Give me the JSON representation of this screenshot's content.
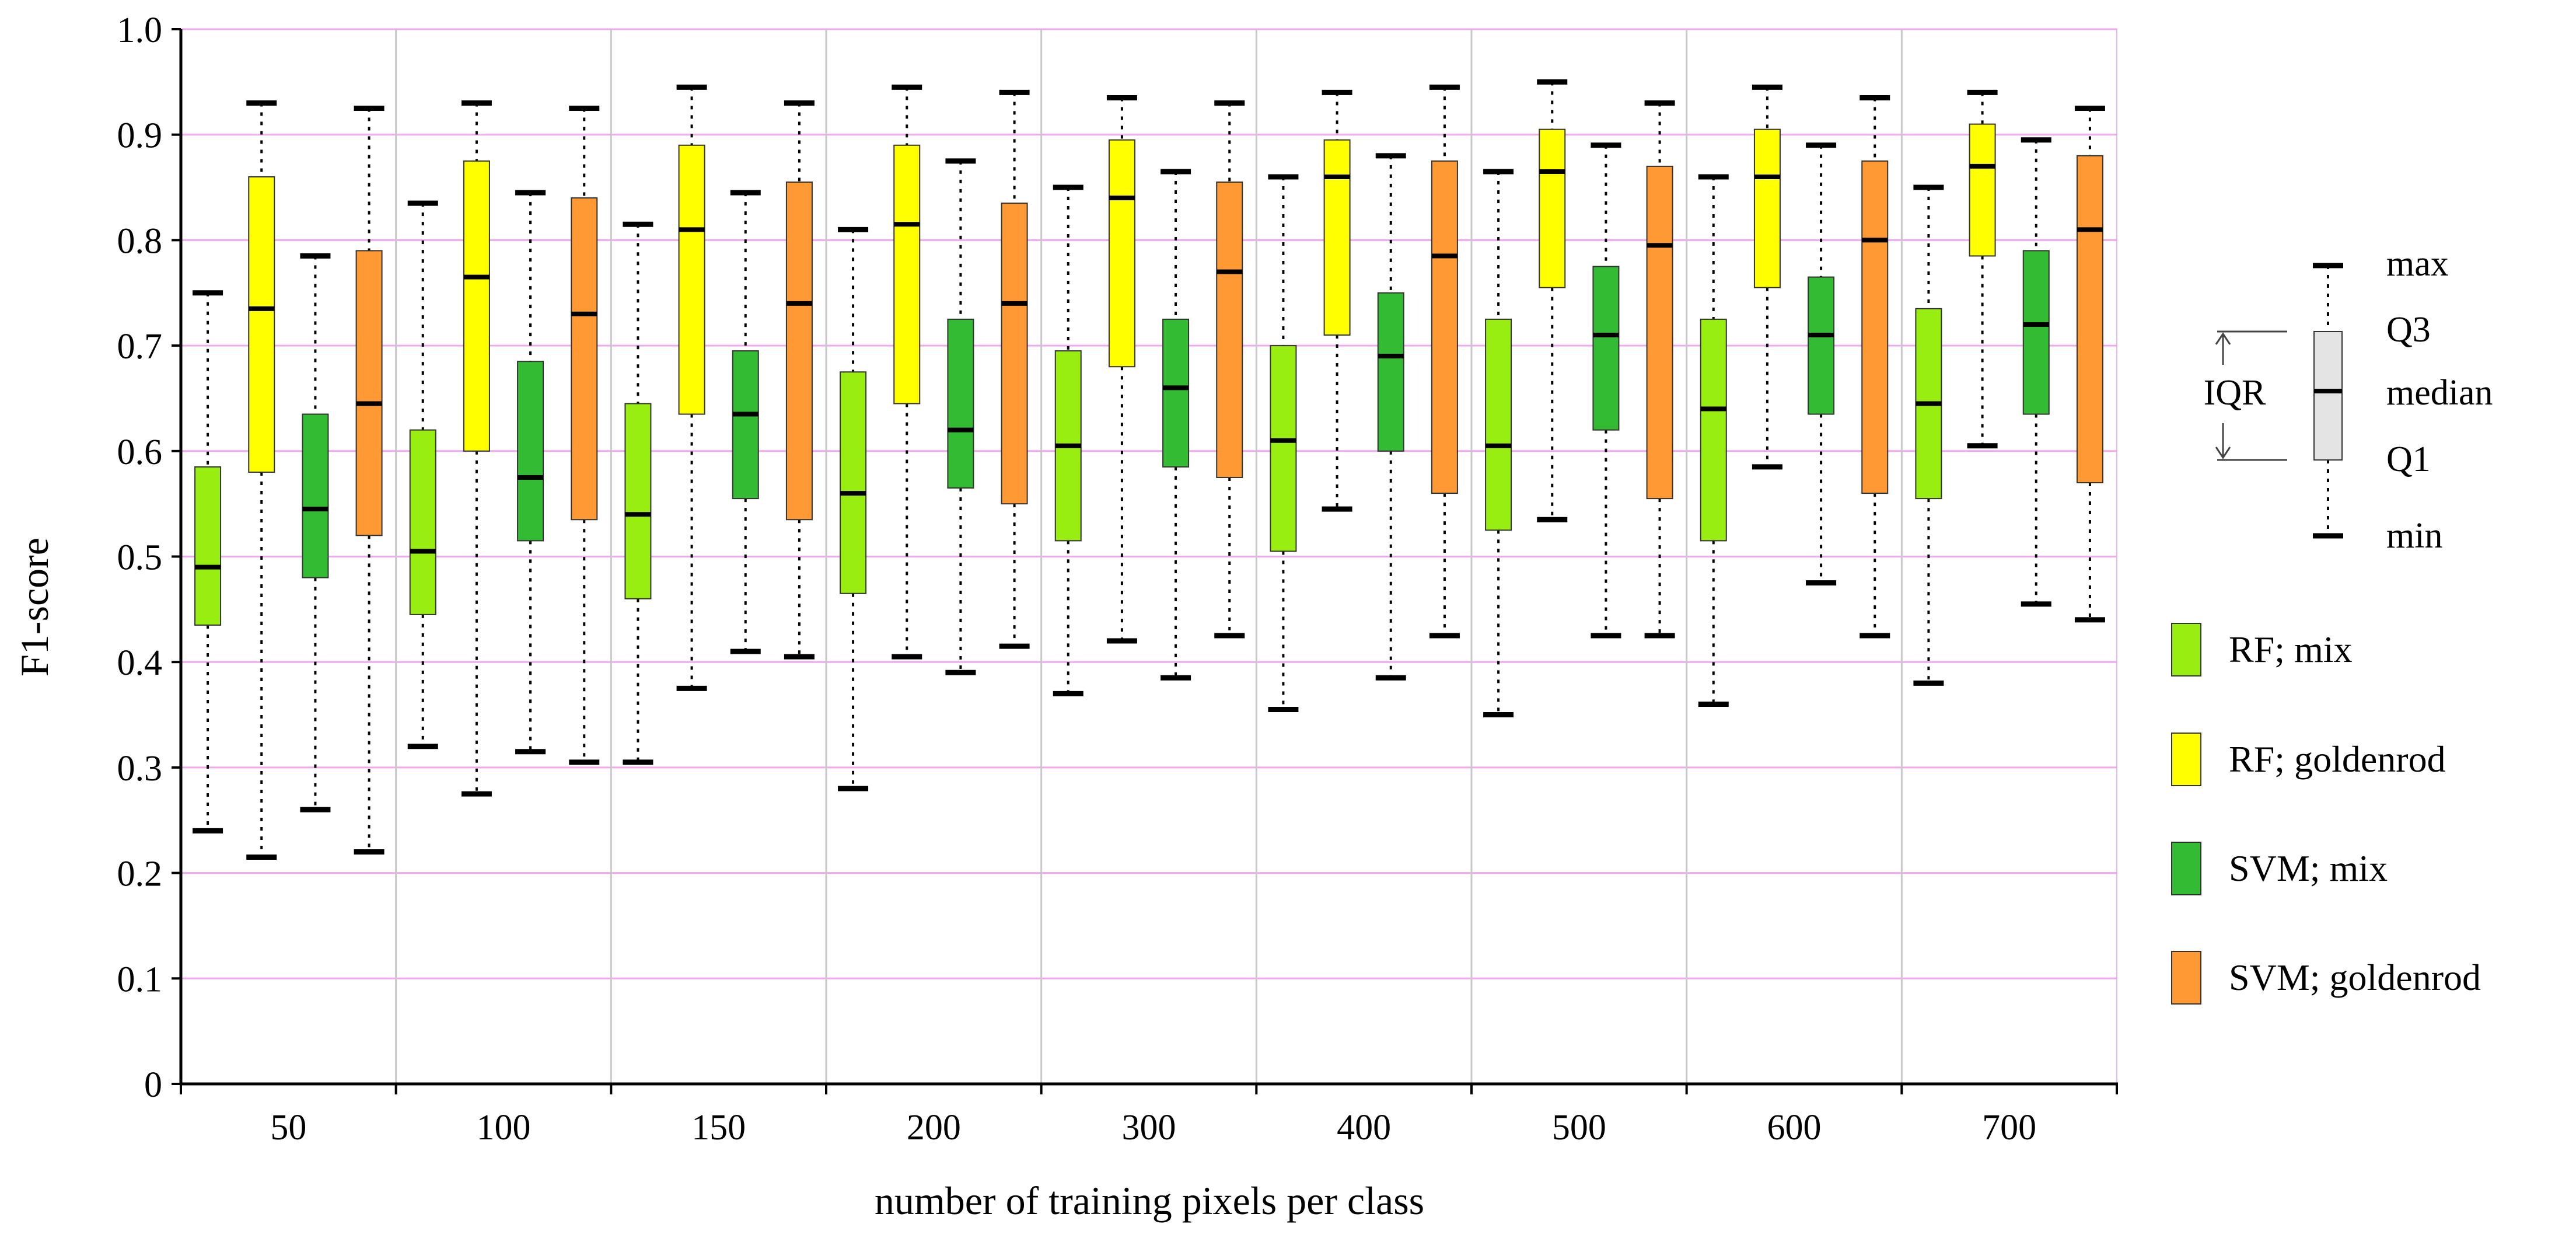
{
  "chart_data": {
    "type": "boxplot",
    "xlabel": "number of training pixels per class",
    "ylabel": "F1-score",
    "ylim": [
      0,
      1.0
    ],
    "y_ticks": [
      "0",
      "0.1",
      "0.2",
      "0.3",
      "0.4",
      "0.5",
      "0.6",
      "0.7",
      "0.8",
      "0.9",
      "1.0"
    ],
    "grid": true,
    "categories": [
      "50",
      "100",
      "150",
      "200",
      "300",
      "400",
      "500",
      "600",
      "700"
    ],
    "series": [
      {
        "name": "RF; mix",
        "color": "#99ee11",
        "boxes": [
          {
            "min": 0.24,
            "q1": 0.435,
            "median": 0.49,
            "q3": 0.585,
            "max": 0.75
          },
          {
            "min": 0.32,
            "q1": 0.445,
            "median": 0.505,
            "q3": 0.62,
            "max": 0.835
          },
          {
            "min": 0.305,
            "q1": 0.46,
            "median": 0.54,
            "q3": 0.645,
            "max": 0.815
          },
          {
            "min": 0.28,
            "q1": 0.465,
            "median": 0.56,
            "q3": 0.675,
            "max": 0.81
          },
          {
            "min": 0.37,
            "q1": 0.515,
            "median": 0.605,
            "q3": 0.695,
            "max": 0.85
          },
          {
            "min": 0.355,
            "q1": 0.505,
            "median": 0.61,
            "q3": 0.7,
            "max": 0.86
          },
          {
            "min": 0.35,
            "q1": 0.525,
            "median": 0.605,
            "q3": 0.725,
            "max": 0.865
          },
          {
            "min": 0.36,
            "q1": 0.515,
            "median": 0.64,
            "q3": 0.725,
            "max": 0.86
          },
          {
            "min": 0.38,
            "q1": 0.555,
            "median": 0.645,
            "q3": 0.735,
            "max": 0.85
          }
        ]
      },
      {
        "name": "RF; goldenrod",
        "color": "#ffff00",
        "boxes": [
          {
            "min": 0.215,
            "q1": 0.58,
            "median": 0.735,
            "q3": 0.86,
            "max": 0.93
          },
          {
            "min": 0.275,
            "q1": 0.6,
            "median": 0.765,
            "q3": 0.875,
            "max": 0.93
          },
          {
            "min": 0.375,
            "q1": 0.635,
            "median": 0.81,
            "q3": 0.89,
            "max": 0.945
          },
          {
            "min": 0.405,
            "q1": 0.645,
            "median": 0.815,
            "q3": 0.89,
            "max": 0.945
          },
          {
            "min": 0.42,
            "q1": 0.68,
            "median": 0.84,
            "q3": 0.895,
            "max": 0.935
          },
          {
            "min": 0.545,
            "q1": 0.71,
            "median": 0.86,
            "q3": 0.895,
            "max": 0.94
          },
          {
            "min": 0.535,
            "q1": 0.755,
            "median": 0.865,
            "q3": 0.905,
            "max": 0.95
          },
          {
            "min": 0.585,
            "q1": 0.755,
            "median": 0.86,
            "q3": 0.905,
            "max": 0.945
          },
          {
            "min": 0.605,
            "q1": 0.785,
            "median": 0.87,
            "q3": 0.91,
            "max": 0.94
          }
        ]
      },
      {
        "name": "SVM; mix",
        "color": "#33bb33",
        "boxes": [
          {
            "min": 0.26,
            "q1": 0.48,
            "median": 0.545,
            "q3": 0.635,
            "max": 0.785
          },
          {
            "min": 0.315,
            "q1": 0.515,
            "median": 0.575,
            "q3": 0.685,
            "max": 0.845
          },
          {
            "min": 0.41,
            "q1": 0.555,
            "median": 0.635,
            "q3": 0.695,
            "max": 0.845
          },
          {
            "min": 0.39,
            "q1": 0.565,
            "median": 0.62,
            "q3": 0.725,
            "max": 0.875
          },
          {
            "min": 0.385,
            "q1": 0.585,
            "median": 0.66,
            "q3": 0.725,
            "max": 0.865
          },
          {
            "min": 0.385,
            "q1": 0.6,
            "median": 0.69,
            "q3": 0.75,
            "max": 0.88
          },
          {
            "min": 0.425,
            "q1": 0.62,
            "median": 0.71,
            "q3": 0.775,
            "max": 0.89
          },
          {
            "min": 0.475,
            "q1": 0.635,
            "median": 0.71,
            "q3": 0.765,
            "max": 0.89
          },
          {
            "min": 0.455,
            "q1": 0.635,
            "median": 0.72,
            "q3": 0.79,
            "max": 0.895
          }
        ]
      },
      {
        "name": "SVM; goldenrod",
        "color": "#ff9933",
        "boxes": [
          {
            "min": 0.22,
            "q1": 0.52,
            "median": 0.645,
            "q3": 0.79,
            "max": 0.925
          },
          {
            "min": 0.305,
            "q1": 0.535,
            "median": 0.73,
            "q3": 0.84,
            "max": 0.925
          },
          {
            "min": 0.405,
            "q1": 0.535,
            "median": 0.74,
            "q3": 0.855,
            "max": 0.93
          },
          {
            "min": 0.415,
            "q1": 0.55,
            "median": 0.74,
            "q3": 0.835,
            "max": 0.94
          },
          {
            "min": 0.425,
            "q1": 0.575,
            "median": 0.77,
            "q3": 0.855,
            "max": 0.93
          },
          {
            "min": 0.425,
            "q1": 0.56,
            "median": 0.785,
            "q3": 0.875,
            "max": 0.945
          },
          {
            "min": 0.425,
            "q1": 0.555,
            "median": 0.795,
            "q3": 0.87,
            "max": 0.93
          },
          {
            "min": 0.425,
            "q1": 0.56,
            "median": 0.8,
            "q3": 0.875,
            "max": 0.935
          },
          {
            "min": 0.44,
            "q1": 0.57,
            "median": 0.81,
            "q3": 0.88,
            "max": 0.925
          }
        ]
      }
    ],
    "key": {
      "max": "max",
      "q3": "Q3",
      "median": "median",
      "q1": "Q1",
      "min": "min",
      "iqr": "IQR"
    }
  }
}
